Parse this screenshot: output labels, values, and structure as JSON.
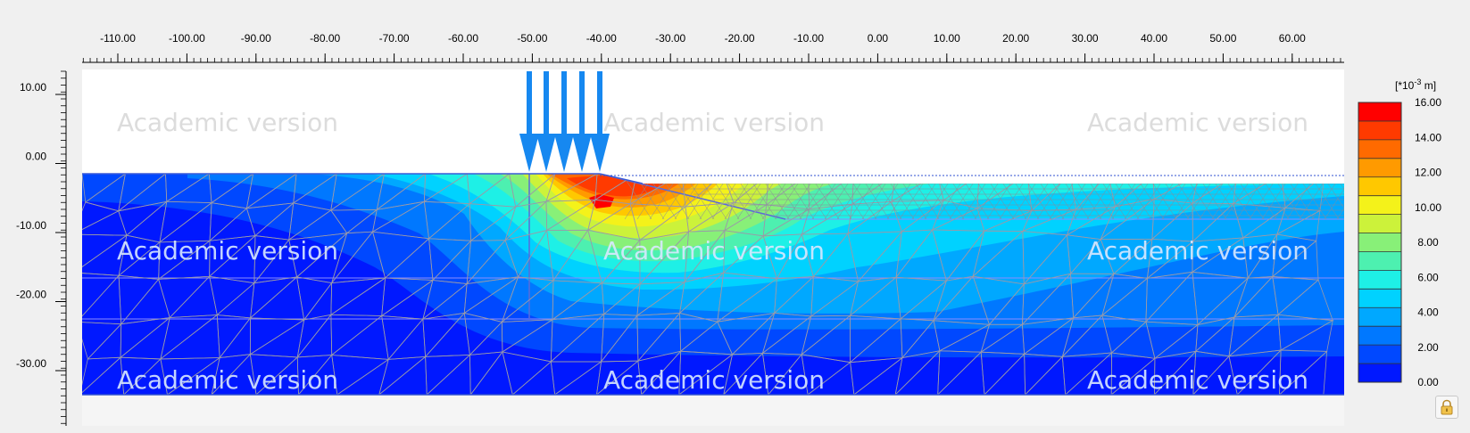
{
  "x_axis": {
    "ticks": [
      "-110.00",
      "-100.00",
      "-90.00",
      "-80.00",
      "-70.00",
      "-60.00",
      "-50.00",
      "-40.00",
      "-30.00",
      "-20.00",
      "-10.00",
      "0.00",
      "10.00",
      "20.00",
      "30.00",
      "40.00",
      "50.00",
      "60.00"
    ]
  },
  "y_axis": {
    "ticks": [
      "10.00",
      "0.00",
      "-10.00",
      "-20.00",
      "-30.00"
    ]
  },
  "legend": {
    "unit_prefix": "[*10",
    "unit_exp": "-3",
    "unit_suffix": " m]",
    "labels": [
      "16.00",
      "14.00",
      "12.00",
      "10.00",
      "8.00",
      "6.00",
      "4.00",
      "2.00",
      "0.00"
    ],
    "colors": [
      "#ff0000",
      "#ff3a00",
      "#ff6a00",
      "#ff9a00",
      "#ffc800",
      "#f4f21a",
      "#ccf23a",
      "#88f078",
      "#4df0b0",
      "#1ef0e6",
      "#00d2ff",
      "#00a8ff",
      "#0078ff",
      "#0048ff",
      "#0018ff"
    ]
  },
  "watermark": {
    "text": "Academic version"
  },
  "lock": {
    "icon": "lock-icon"
  },
  "colors": {
    "background": "#f0f0f0",
    "soil_deep": "#0018ff",
    "load_arrow": "#1688f0",
    "mesh": "#9a9aa8"
  }
}
